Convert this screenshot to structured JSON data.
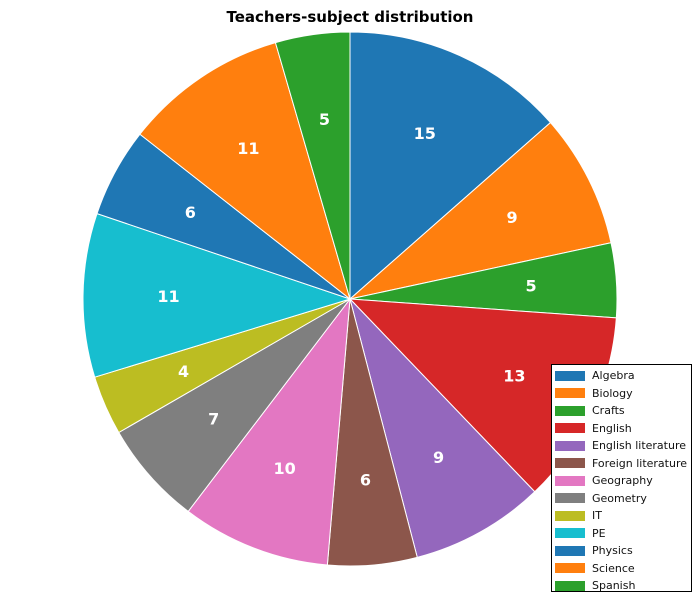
{
  "chart_data": {
    "type": "pie",
    "title": "Teachers-subject distribution",
    "categories": [
      "Algebra",
      "Biology",
      "Crafts",
      "English",
      "English literature",
      "Foreign literature",
      "Geography",
      "Geometry",
      "IT",
      "PE",
      "Physics",
      "Science",
      "Spanish"
    ],
    "values": [
      15,
      9,
      5,
      13,
      9,
      6,
      10,
      7,
      4,
      11,
      6,
      11,
      5
    ],
    "colors": [
      "#1f77b4",
      "#ff7f0e",
      "#2ca02c",
      "#d62728",
      "#9467bd",
      "#8c564b",
      "#e377c2",
      "#7f7f7f",
      "#bcbd22",
      "#17becf",
      "#1f77b4",
      "#ff7f0e",
      "#2ca02c"
    ],
    "start_angle": "12 o'clock",
    "direction": "clockwise",
    "legend": {
      "position": "bottom-right"
    }
  }
}
